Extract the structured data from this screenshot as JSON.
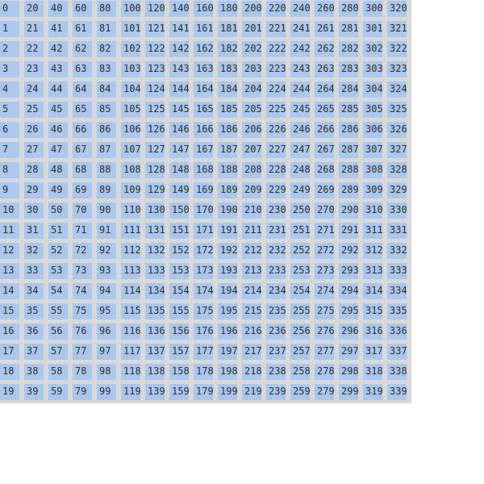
{
  "grid": {
    "columns": [
      [
        "0",
        "1",
        "2",
        "3",
        "4",
        "5",
        "6",
        "7",
        "8",
        "9",
        "10",
        "11",
        "12",
        "13",
        "14",
        "15",
        "16",
        "17",
        "18",
        "19"
      ],
      [
        "20",
        "21",
        "22",
        "23",
        "24",
        "25",
        "26",
        "27",
        "28",
        "29",
        "30",
        "31",
        "32",
        "33",
        "34",
        "35",
        "36",
        "37",
        "38",
        "39"
      ],
      [
        "40",
        "41",
        "42",
        "43",
        "44",
        "45",
        "46",
        "47",
        "48",
        "49",
        "50",
        "51",
        "52",
        "53",
        "54",
        "55",
        "56",
        "57",
        "58",
        "59"
      ],
      [
        "60",
        "61",
        "62",
        "63",
        "64",
        "65",
        "66",
        "67",
        "68",
        "69",
        "70",
        "71",
        "72",
        "73",
        "74",
        "75",
        "76",
        "77",
        "78",
        "79"
      ],
      [
        "80",
        "81",
        "82",
        "83",
        "84",
        "85",
        "86",
        "87",
        "88",
        "89",
        "90",
        "91",
        "92",
        "93",
        "94",
        "95",
        "96",
        "97",
        "98",
        "99"
      ],
      [
        "100",
        "101",
        "102",
        "103",
        "104",
        "105",
        "106",
        "107",
        "108",
        "109",
        "110",
        "111",
        "112",
        "113",
        "114",
        "115",
        "116",
        "117",
        "118",
        "119"
      ],
      [
        "120",
        "121",
        "122",
        "123",
        "124",
        "125",
        "126",
        "127",
        "128",
        "129",
        "130",
        "131",
        "132",
        "133",
        "134",
        "135",
        "136",
        "137",
        "138",
        "139"
      ],
      [
        "140",
        "141",
        "142",
        "143",
        "144",
        "145",
        "146",
        "147",
        "148",
        "149",
        "150",
        "151",
        "152",
        "153",
        "154",
        "155",
        "156",
        "157",
        "158",
        "159"
      ],
      [
        "160",
        "161",
        "162",
        "163",
        "164",
        "165",
        "166",
        "167",
        "168",
        "169",
        "170",
        "171",
        "172",
        "173",
        "174",
        "175",
        "176",
        "177",
        "178",
        "179"
      ],
      [
        "180",
        "181",
        "182",
        "183",
        "184",
        "185",
        "186",
        "187",
        "188",
        "189",
        "190",
        "191",
        "192",
        "193",
        "194",
        "195",
        "196",
        "197",
        "198",
        "199"
      ],
      [
        "200",
        "201",
        "202",
        "203",
        "204",
        "205",
        "206",
        "207",
        "208",
        "209",
        "210",
        "211",
        "212",
        "213",
        "214",
        "215",
        "216",
        "217",
        "218",
        "219"
      ],
      [
        "220",
        "221",
        "222",
        "223",
        "224",
        "225",
        "226",
        "227",
        "228",
        "229",
        "230",
        "231",
        "232",
        "233",
        "234",
        "235",
        "236",
        "237",
        "238",
        "239"
      ],
      [
        "240",
        "241",
        "242",
        "243",
        "244",
        "245",
        "246",
        "247",
        "248",
        "249",
        "250",
        "251",
        "252",
        "253",
        "254",
        "255",
        "256",
        "257",
        "258",
        "259"
      ],
      [
        "260",
        "261",
        "262",
        "263",
        "264",
        "265",
        "266",
        "267",
        "268",
        "269",
        "270",
        "271",
        "272",
        "273",
        "274",
        "275",
        "276",
        "277",
        "278",
        "279"
      ],
      [
        "280",
        "281",
        "282",
        "283",
        "284",
        "285",
        "286",
        "287",
        "288",
        "289",
        "290",
        "291",
        "292",
        "293",
        "294",
        "295",
        "296",
        "297",
        "298",
        "299"
      ],
      [
        "300",
        "301",
        "302",
        "303",
        "304",
        "305",
        "306",
        "307",
        "308",
        "309",
        "310",
        "311",
        "312",
        "313",
        "314",
        "315",
        "316",
        "317",
        "318",
        "319"
      ],
      [
        "320",
        "321",
        "322",
        "323",
        "324",
        "325",
        "326",
        "327",
        "328",
        "329",
        "330",
        "331",
        "332",
        "333",
        "334",
        "335",
        "336",
        "337",
        "338",
        "339"
      ]
    ]
  },
  "colors": {
    "background": "#d8d8d8",
    "cell": "#a9c7ef",
    "text": "#2c2c2c"
  }
}
